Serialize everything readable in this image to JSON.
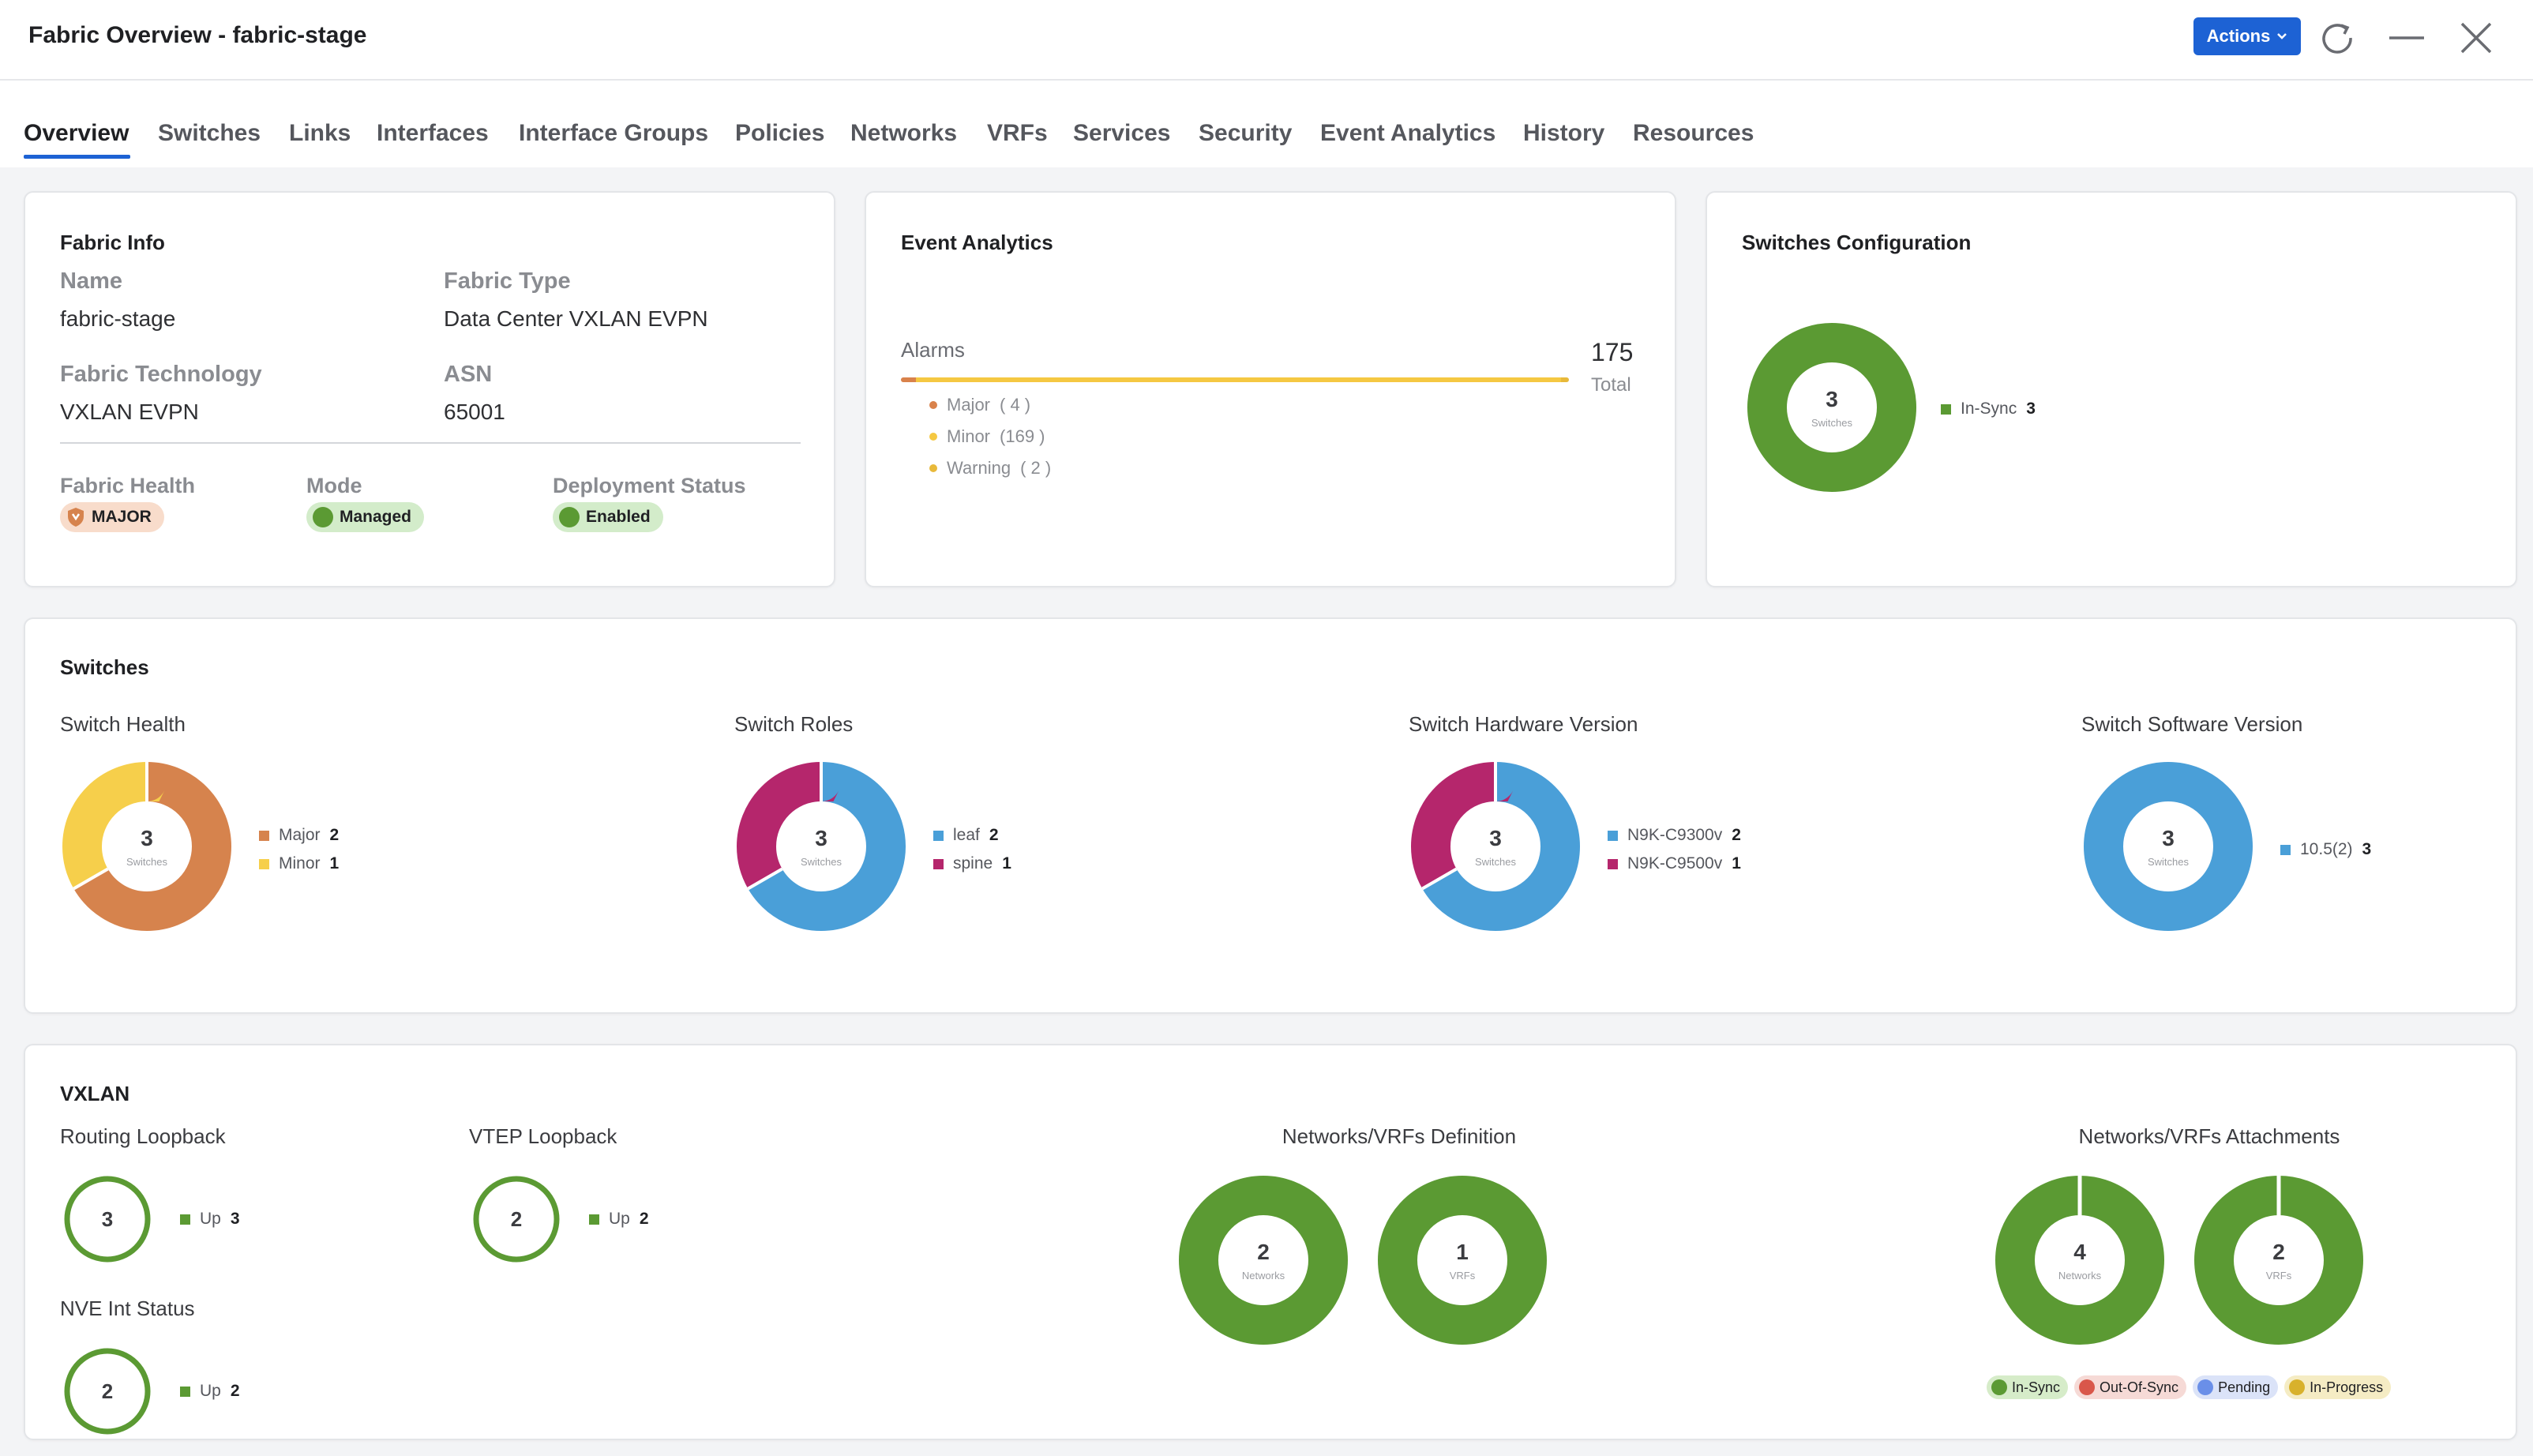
{
  "window": {
    "title": "Fabric Overview - fabric-stage",
    "actions_label": "Actions"
  },
  "tabs": [
    {
      "label": "Overview"
    },
    {
      "label": "Switches"
    },
    {
      "label": "Links"
    },
    {
      "label": "Interfaces"
    },
    {
      "label": "Interface Groups"
    },
    {
      "label": "Policies"
    },
    {
      "label": "Networks"
    },
    {
      "label": "VRFs"
    },
    {
      "label": "Services"
    },
    {
      "label": "Security"
    },
    {
      "label": "Event Analytics"
    },
    {
      "label": "History"
    },
    {
      "label": "Resources"
    }
  ],
  "fabric_info": {
    "title": "Fabric Info",
    "name_label": "Name",
    "name_value": "fabric-stage",
    "type_label": "Fabric Type",
    "type_value": "Data Center VXLAN EVPN",
    "tech_label": "Fabric Technology",
    "tech_value": "VXLAN EVPN",
    "asn_label": "ASN",
    "asn_value": "65001",
    "health_label": "Fabric Health",
    "health_value": "MAJOR",
    "mode_label": "Mode",
    "mode_value": "Managed",
    "deploy_label": "Deployment Status",
    "deploy_value": "Enabled"
  },
  "event_analytics": {
    "title": "Event Analytics",
    "alarms_label": "Alarms",
    "total_value": "175",
    "total_label": "Total",
    "items": [
      {
        "label": "Major",
        "count": "( 4 )",
        "value": 4,
        "color": "#d9824b"
      },
      {
        "label": "Minor",
        "count": "(169 )",
        "value": 169,
        "color": "#f5c842"
      },
      {
        "label": "Warning",
        "count": "( 2 )",
        "value": 2,
        "color": "#e8b93a"
      }
    ]
  },
  "switches_config": {
    "title": "Switches Configuration",
    "center_value": "3",
    "center_label": "Switches",
    "legend_label": "In-Sync",
    "legend_value": "3",
    "color": "#5b9a33"
  },
  "switches": {
    "title": "Switches",
    "charts": [
      {
        "label": "Switch Health",
        "center_value": "3",
        "center_label": "Switches",
        "segments": [
          {
            "label": "Major",
            "value": 2,
            "value_text": "2",
            "color": "#d6834d"
          },
          {
            "label": "Minor",
            "value": 1,
            "value_text": "1",
            "color": "#f6cf4b"
          }
        ]
      },
      {
        "label": "Switch Roles",
        "center_value": "3",
        "center_label": "Switches",
        "segments": [
          {
            "label": "leaf",
            "value": 2,
            "value_text": "2",
            "color": "#4a9fd8"
          },
          {
            "label": "spine",
            "value": 1,
            "value_text": "1",
            "color": "#b5266c"
          }
        ]
      },
      {
        "label": "Switch Hardware Version",
        "center_value": "3",
        "center_label": "Switches",
        "segments": [
          {
            "label": "N9K-C9300v",
            "value": 2,
            "value_text": "2",
            "color": "#4a9fd8"
          },
          {
            "label": "N9K-C9500v",
            "value": 1,
            "value_text": "1",
            "color": "#b5266c"
          }
        ]
      },
      {
        "label": "Switch Software Version",
        "center_value": "3",
        "center_label": "Switches",
        "segments": [
          {
            "label": "10.5(2)",
            "value": 3,
            "value_text": "3",
            "color": "#4a9fd8"
          }
        ]
      }
    ]
  },
  "vxlan": {
    "title": "VXLAN",
    "routing_loopback": {
      "label": "Routing Loopback",
      "value": "3",
      "legend_label": "Up",
      "legend_value": "3"
    },
    "vtep_loopback": {
      "label": "VTEP Loopback",
      "value": "2",
      "legend_label": "Up",
      "legend_value": "2"
    },
    "nve_status": {
      "label": "NVE Int Status",
      "value": "2",
      "legend_label": "Up",
      "legend_value": "2"
    },
    "definition": {
      "label": "Networks/VRFs Definition",
      "networks": {
        "value": "2",
        "label": "Networks"
      },
      "vrfs": {
        "value": "1",
        "label": "VRFs"
      }
    },
    "attachments": {
      "label": "Networks/VRFs Attachments",
      "networks": {
        "value": "4",
        "label": "Networks"
      },
      "vrfs": {
        "value": "2",
        "label": "VRFs"
      },
      "legend": [
        {
          "label": "In-Sync",
          "color": "#5b9a33",
          "bg": "#d6ecc9"
        },
        {
          "label": "Out-Of-Sync",
          "color": "#d9574a",
          "bg": "#f6dad6"
        },
        {
          "label": "Pending",
          "color": "#6a8fe8",
          "bg": "#dbe3f8"
        },
        {
          "label": "In-Progress",
          "color": "#d8b12c",
          "bg": "#f5ecc4"
        }
      ]
    }
  }
}
